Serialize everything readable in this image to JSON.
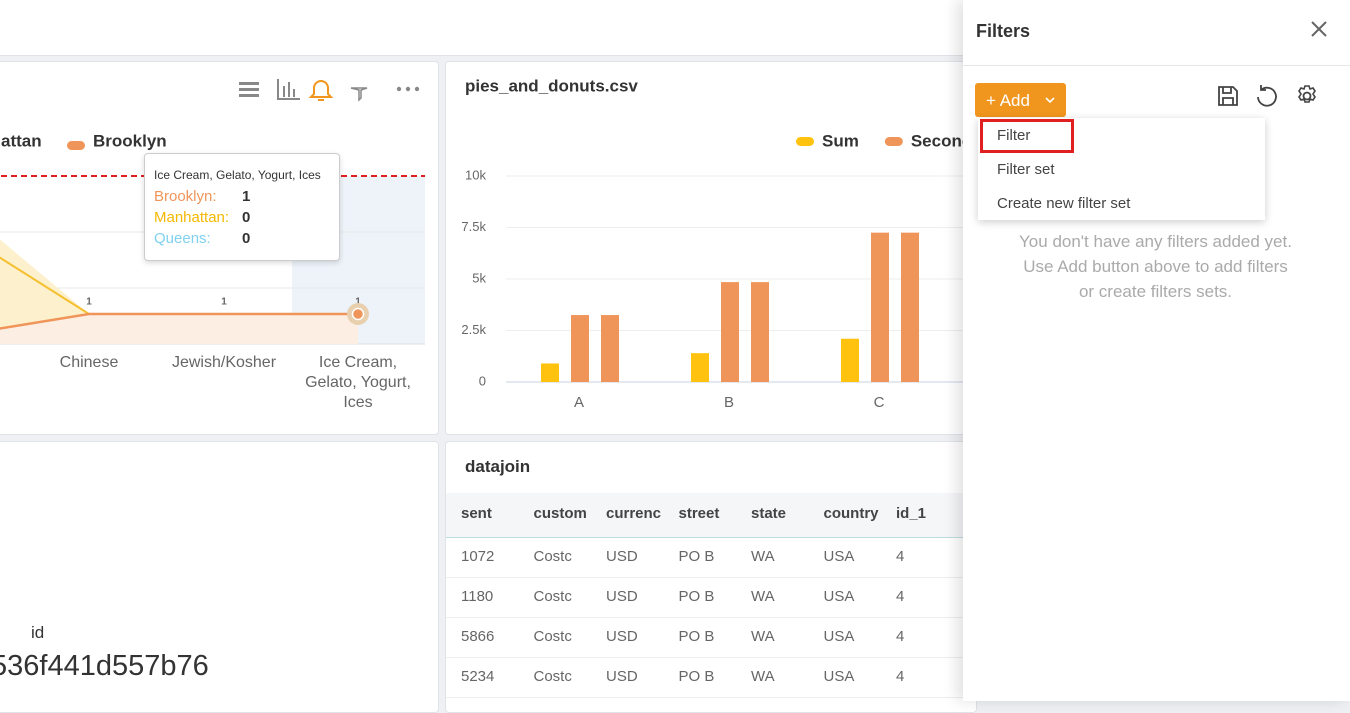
{
  "line_panel": {
    "legend": [
      "attan",
      "Brooklyn"
    ],
    "categories": [
      "Chinese",
      "Jewish/Kosher",
      "Ice Cream, Gelato, Yogurt, Ices"
    ],
    "values": [
      1,
      1,
      1
    ],
    "tooltip": {
      "title": "Ice Cream, Gelato, Yogurt, Ices",
      "rows": [
        {
          "label": "Brooklyn:",
          "value": 1,
          "color": "#f0955a"
        },
        {
          "label": "Manhattan:",
          "value": 0,
          "color": "#f5b800"
        },
        {
          "label": "Queens:",
          "value": 0,
          "color": "#7fd1f0"
        }
      ]
    }
  },
  "chart_data": {
    "type": "bar",
    "title": "pies_and_donuts.csv",
    "categories": [
      "A",
      "B",
      "C"
    ],
    "series": [
      {
        "name": "Sum",
        "color": "#ffc20e",
        "values": [
          900,
          1400,
          2100
        ]
      },
      {
        "name": "Seconc",
        "color": "#f0955a",
        "values": [
          3250,
          4850,
          7250
        ]
      },
      {
        "color": "#f0955a",
        "values": [
          3250,
          4850,
          7250
        ]
      }
    ],
    "ylim": [
      0,
      10000
    ],
    "yticks": [
      0,
      {
        "value": 2500,
        "label": "2.5k"
      },
      {
        "value": 5000,
        "label": "5k"
      },
      {
        "value": 7500,
        "label": "7.5k"
      },
      {
        "value": 10000,
        "label": "10k"
      }
    ],
    "grid": true
  },
  "big_number": {
    "label": "id",
    "value": "536f441d557b76"
  },
  "table": {
    "title": "datajoin",
    "columns": [
      "sent",
      "custom",
      "currenc",
      "street",
      "state",
      "country",
      "id_1"
    ],
    "rows": [
      [
        "1072",
        "Costc",
        "USD",
        "PO B",
        "WA",
        "USA",
        "4"
      ],
      [
        "1180",
        "Costc",
        "USD",
        "PO B",
        "WA",
        "USA",
        "4"
      ],
      [
        "5866",
        "Costc",
        "USD",
        "PO B",
        "WA",
        "USA",
        "4"
      ],
      [
        "5234",
        "Costc",
        "USD",
        "PO B",
        "WA",
        "USA",
        "4"
      ]
    ]
  },
  "filters": {
    "title": "Filters",
    "add_button": "+ Add",
    "menu": [
      "Filter",
      "Filter set",
      "Create new filter set"
    ],
    "empty_message": [
      "You don't have any filters added yet.",
      "Use Add button above to add filters",
      "or create filters sets."
    ]
  }
}
